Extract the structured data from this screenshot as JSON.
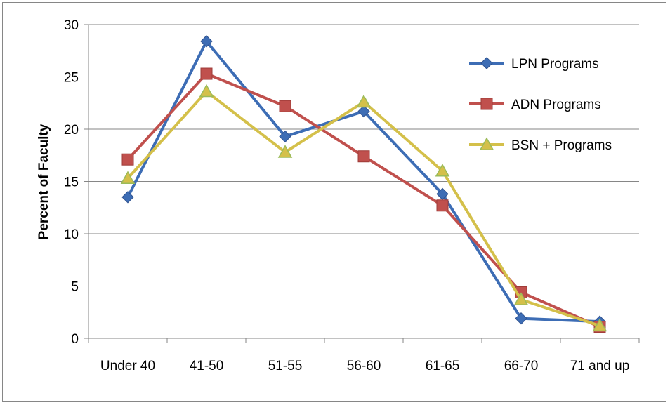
{
  "chart_data": {
    "type": "line",
    "title": "",
    "xlabel": "",
    "ylabel": "Percent of Faculty",
    "ylim": [
      0,
      30
    ],
    "yticks": [
      0,
      5,
      10,
      15,
      20,
      25,
      30
    ],
    "grid": true,
    "legend_position": "top-right",
    "categories": [
      "Under 40",
      "41-50",
      "51-55",
      "56-60",
      "61-65",
      "66-70",
      "71 and up"
    ],
    "series": [
      {
        "name": "LPN Programs",
        "color": "#3D6DB5",
        "marker": "diamond",
        "values": [
          13.5,
          28.4,
          19.3,
          21.7,
          13.8,
          1.9,
          1.6
        ]
      },
      {
        "name": "ADN Programs",
        "color": "#C0504D",
        "marker": "square",
        "values": [
          17.1,
          25.3,
          22.2,
          17.4,
          12.7,
          4.4,
          1.1
        ]
      },
      {
        "name": "BSN + Programs",
        "color": "#D4C04A",
        "marker": "triangle",
        "values": [
          15.3,
          23.6,
          17.8,
          22.6,
          16.0,
          3.7,
          1.2
        ]
      }
    ]
  }
}
